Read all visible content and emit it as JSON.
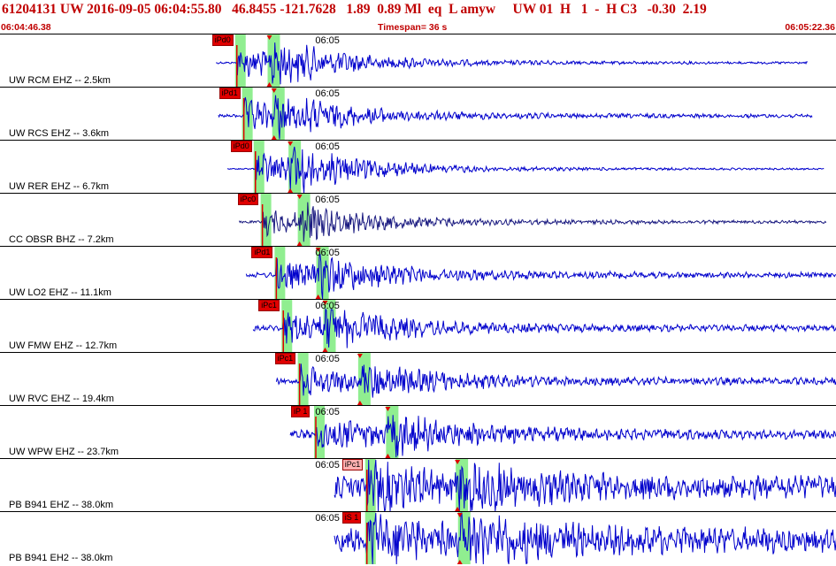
{
  "header": {
    "title": "61204131 UW 2016-09-05 06:04:55.80   46.8455 -121.7628   1.89  0.89 Ml  eq  L amyw     UW 01  H   1  -  H C3   -0.30  2.19",
    "start_time": "06:04:46.38",
    "timespan": "Timespan=  36 s",
    "end_time": "06:05:22.36"
  },
  "colors": {
    "header_text": "#c00000",
    "trace": "#0000cc",
    "trace_dark": "#1a1a80",
    "pick_window": "#90ee90",
    "pick_tag": "#e00000",
    "pick_tag_light": "#ffb0b0",
    "pick_line": "#e00000",
    "s_marker": "#e00000"
  },
  "time_label": "06:05",
  "panels": [
    {
      "station": "UW RCM EHZ -- 2.5km",
      "pick_label": "iPd0",
      "tag_style": "solid",
      "trace_color": "trace",
      "amp": 0.5,
      "noise": 0.03,
      "p_time": 0.9,
      "s_time": 2.3,
      "trace_start": 0.0,
      "trace_end": 25.5
    },
    {
      "station": "UW RCS EHZ -- 3.6km",
      "pick_label": "iPd1",
      "tag_style": "solid",
      "trace_color": "trace",
      "amp": 0.45,
      "noise": 0.05,
      "p_time": 1.2,
      "s_time": 2.5,
      "trace_start": 0.1,
      "trace_end": 25.7
    },
    {
      "station": "UW RER EHZ -- 6.7km",
      "pick_label": "iPd0",
      "tag_style": "solid",
      "trace_color": "trace",
      "amp": 0.5,
      "noise": 0.02,
      "p_time": 1.7,
      "s_time": 3.2,
      "trace_start": 0.5,
      "trace_end": 26.2
    },
    {
      "station": "CC OBSR BHZ -- 7.2km",
      "pick_label": "iPc0",
      "tag_style": "solid",
      "trace_color": "trace_dark",
      "amp": 0.35,
      "noise": 0.04,
      "p_time": 2.0,
      "s_time": 3.6,
      "trace_start": 1.0,
      "trace_end": 26.3
    },
    {
      "station": "UW LO2 EHZ -- 11.1km",
      "pick_label": "iPd1",
      "tag_style": "solid",
      "trace_color": "trace",
      "amp": 0.4,
      "noise": 0.08,
      "p_time": 2.6,
      "s_time": 4.4,
      "trace_start": 1.3,
      "trace_end": 26.9
    },
    {
      "station": "UW FMW EHZ -- 12.7km",
      "pick_label": "iPc1",
      "tag_style": "solid",
      "trace_color": "trace",
      "amp": 0.42,
      "noise": 0.09,
      "p_time": 2.9,
      "s_time": 4.7,
      "trace_start": 1.6,
      "trace_end": 27.2
    },
    {
      "station": "UW RVC EHZ -- 19.4km",
      "pick_label": "iPc1",
      "tag_style": "solid",
      "trace_color": "trace",
      "amp": 0.4,
      "noise": 0.1,
      "p_time": 3.6,
      "s_time": 6.2,
      "trace_start": 2.6,
      "trace_end": 28.0
    },
    {
      "station": "UW WPW EHZ -- 23.7km",
      "pick_label": "iP 1",
      "tag_style": "solid",
      "trace_color": "trace",
      "amp": 0.45,
      "noise": 0.14,
      "p_time": 4.3,
      "s_time": 7.4,
      "trace_start": 3.2,
      "trace_end": 28.7
    },
    {
      "station": "PB B941 EHZ -- 38.0km",
      "pick_label": "iPc1",
      "tag_style": "light",
      "trace_color": "trace",
      "amp": 0.55,
      "noise": 0.35,
      "p_time": 6.5,
      "s_time": 10.4,
      "trace_start": 5.1,
      "trace_end": 30.6
    },
    {
      "station": "PB B941 EH2 -- 38.0km",
      "pick_label": "iS 1",
      "tag_style": "solid",
      "trace_color": "trace",
      "amp": 0.6,
      "noise": 0.4,
      "p_time": 6.5,
      "s_time": 10.5,
      "trace_start": 5.1,
      "trace_end": 30.6
    }
  ]
}
